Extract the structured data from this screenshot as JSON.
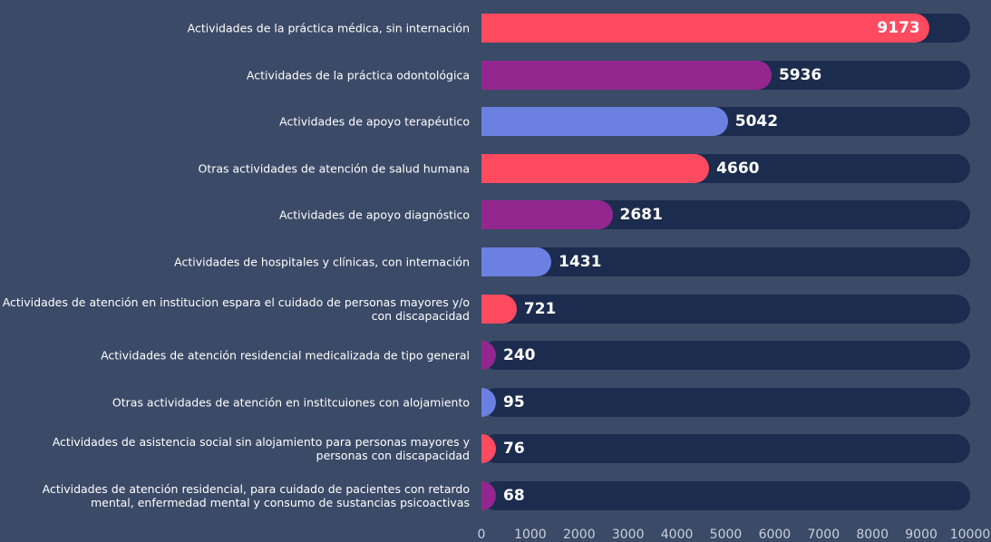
{
  "chart_data": {
    "type": "bar",
    "categories": [
      "Actividades de la práctica médica, sin internación",
      "Actividades de la práctica odontológica",
      "Actividades de apoyo terapéutico",
      "Otras actividades de atención de salud humana",
      "Actividades de apoyo diagnóstico",
      "Actividades de hospitales y clínicas, con internación",
      "Actividades de atención en institucion espara el cuidado de personas mayores y/o con discapacidad",
      "Actividades de atención residencial medicalizada de tipo general",
      "Otras actividades de atención en institcuiones con alojamiento",
      "Actividades de asistencia social sin alojamiento para personas mayores y personas con discapacidad",
      "Actividades de atención residencial, para cuidado de pacientes con retardo mental, enfermedad mental y consumo de sustancias psicoactivas"
    ],
    "values": [
      9173,
      5936,
      5042,
      4660,
      2681,
      1431,
      721,
      240,
      95,
      76,
      68
    ],
    "colors": [
      "#ff4a60",
      "#93278f",
      "#6b80e0",
      "#ff4a60",
      "#93278f",
      "#6b80e0",
      "#ff4a60",
      "#93278f",
      "#6b80e0",
      "#ff4a60",
      "#93278f"
    ],
    "xlim": [
      0,
      10000
    ],
    "xticks": [
      0,
      1000,
      2000,
      3000,
      4000,
      5000,
      6000,
      7000,
      8000,
      9000,
      10000
    ]
  }
}
